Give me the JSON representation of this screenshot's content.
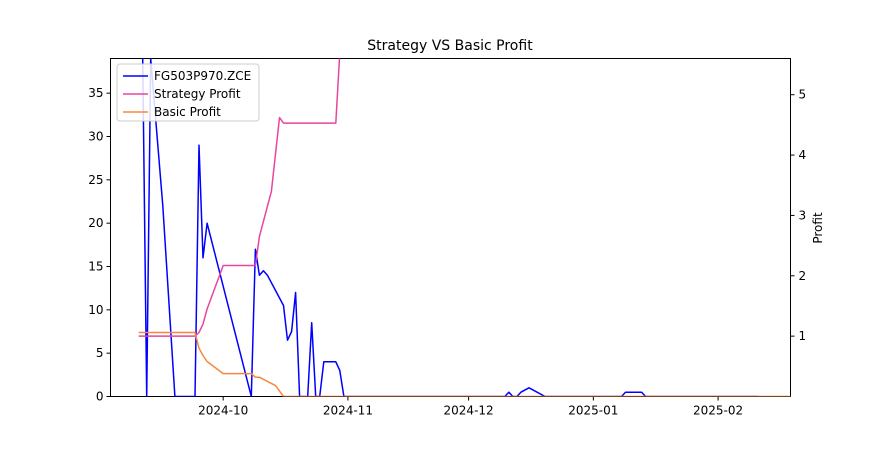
{
  "chart_data": {
    "type": "line",
    "title": "Strategy VS Basic Profit",
    "xlabel": "",
    "ylabel_left": "",
    "ylabel_right": "Profit",
    "x_range": [
      "2024-09-03",
      "2025-02-19"
    ],
    "x_ticks": [
      "2024-10-01",
      "2024-11-01",
      "2024-12-01",
      "2025-01-01",
      "2025-02-01"
    ],
    "x_tick_labels": [
      "2024-10",
      "2024-11",
      "2024-12",
      "2025-01",
      "2025-02"
    ],
    "left_axis": {
      "ylim": [
        0,
        39
      ],
      "ticks": [
        0,
        5,
        10,
        15,
        20,
        25,
        30,
        35
      ]
    },
    "right_axis": {
      "ylim": [
        0.0,
        5.6
      ],
      "ticks": [
        1,
        2,
        3,
        4,
        5
      ]
    },
    "grid": false,
    "legend_position": "upper-left",
    "series": [
      {
        "name": "FG503P970.ZCE",
        "axis": "left",
        "color": "#0000ff",
        "x": [
          "2024-09-11",
          "2024-09-12",
          "2024-09-13",
          "2024-09-16",
          "2024-09-19",
          "2024-09-20",
          "2024-09-23",
          "2024-09-24",
          "2024-09-25",
          "2024-09-26",
          "2024-09-27",
          "2024-10-08",
          "2024-10-09",
          "2024-10-10",
          "2024-10-11",
          "2024-10-12",
          "2024-10-16",
          "2024-10-17",
          "2024-10-18",
          "2024-10-19",
          "2024-10-20",
          "2024-10-21",
          "2024-10-22",
          "2024-10-23",
          "2024-10-24",
          "2024-10-25",
          "2024-10-26",
          "2024-10-29",
          "2024-10-30",
          "2024-10-31",
          "2024-11-15",
          "2024-12-09",
          "2024-12-10",
          "2024-12-11",
          "2024-12-12",
          "2024-12-13",
          "2024-12-14",
          "2024-12-16",
          "2024-12-20",
          "2025-01-07",
          "2025-01-08",
          "2025-01-09",
          "2025-01-10",
          "2025-01-13",
          "2025-01-14",
          "2025-01-20",
          "2025-02-11"
        ],
        "values": [
          39,
          0,
          39,
          22,
          0,
          0,
          0,
          0,
          29,
          16,
          20,
          0,
          17,
          14,
          14.5,
          14,
          10.5,
          6.5,
          7.5,
          12,
          0,
          0,
          0,
          8.5,
          0,
          0,
          4,
          4,
          3,
          0,
          0,
          0,
          0,
          0.5,
          0,
          0,
          0.5,
          1,
          0,
          0,
          0,
          0.5,
          0.5,
          0.5,
          0,
          0,
          0
        ]
      },
      {
        "name": "Strategy Profit",
        "axis": "right",
        "color": "#e8469e",
        "x": [
          "2024-09-10",
          "2024-09-24",
          "2024-09-25",
          "2024-09-26",
          "2024-09-27",
          "2024-10-01",
          "2024-10-08",
          "2024-10-09",
          "2024-10-10",
          "2024-10-13",
          "2024-10-15",
          "2024-10-16",
          "2024-10-29",
          "2024-10-30"
        ],
        "values": [
          1.0,
          1.0,
          1.06,
          1.2,
          1.45,
          2.17,
          2.17,
          2.17,
          2.65,
          3.4,
          4.62,
          4.53,
          4.53,
          5.7
        ]
      },
      {
        "name": "Basic Profit",
        "axis": "right",
        "color": "#f5883f",
        "x": [
          "2024-09-10",
          "2024-09-24",
          "2024-09-25",
          "2024-09-26",
          "2024-09-27",
          "2024-10-01",
          "2024-10-08",
          "2024-10-09",
          "2024-10-10",
          "2024-10-12",
          "2024-10-14",
          "2024-10-16",
          "2024-10-29",
          "2025-02-19"
        ],
        "values": [
          1.06,
          1.06,
          0.8,
          0.68,
          0.58,
          0.38,
          0.38,
          0.32,
          0.32,
          0.25,
          0.18,
          0.0,
          0.0,
          0.0
        ]
      }
    ]
  }
}
